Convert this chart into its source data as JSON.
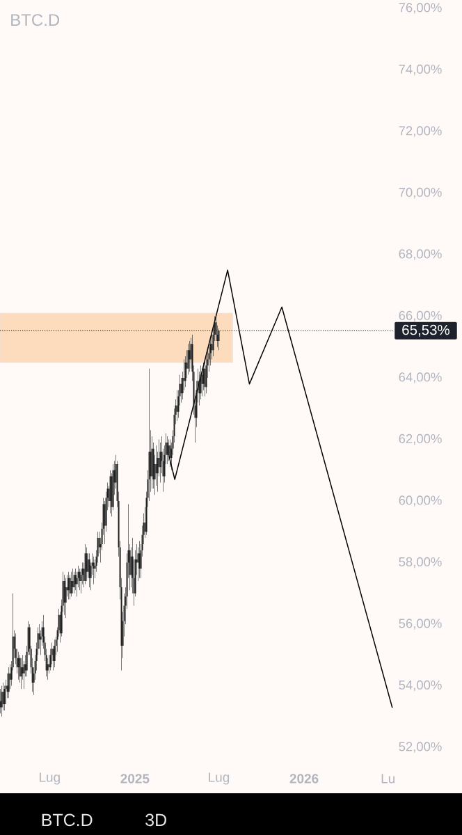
{
  "chart_data": {
    "type": "candlestick",
    "title": "BTC.D",
    "color": "#1e1e1e",
    "x": [
      "2024-03-17",
      "2024-03-20",
      "2024-03-23",
      "2024-03-26",
      "2024-03-29",
      "2024-04-01",
      "2024-04-04",
      "2024-04-07",
      "2024-04-10",
      "2024-04-13",
      "2024-04-16",
      "2024-04-19",
      "2024-04-22",
      "2024-04-25",
      "2024-04-28",
      "2024-05-01",
      "2024-05-04",
      "2024-05-07",
      "2024-05-10",
      "2024-05-13",
      "2024-05-16",
      "2024-05-19",
      "2024-05-22",
      "2024-05-25",
      "2024-05-28",
      "2024-05-31",
      "2024-06-03",
      "2024-06-06",
      "2024-06-09",
      "2024-06-12",
      "2024-06-15",
      "2024-06-18",
      "2024-06-21",
      "2024-06-24",
      "2024-06-27",
      "2024-06-30",
      "2024-07-03",
      "2024-07-06",
      "2024-07-09",
      "2024-07-12",
      "2024-07-15",
      "2024-07-18",
      "2024-07-21",
      "2024-07-24",
      "2024-07-27",
      "2024-07-30",
      "2024-08-02",
      "2024-08-05",
      "2024-08-08",
      "2024-08-11",
      "2024-08-14",
      "2024-08-17",
      "2024-08-20",
      "2024-08-23",
      "2024-08-26",
      "2024-08-29",
      "2024-09-01",
      "2024-09-04",
      "2024-09-07",
      "2024-09-10",
      "2024-09-13",
      "2024-09-16",
      "2024-09-19",
      "2024-09-22",
      "2024-09-25",
      "2024-09-28",
      "2024-10-01",
      "2024-10-04",
      "2024-10-07",
      "2024-10-10",
      "2024-10-13",
      "2024-10-16",
      "2024-10-19",
      "2024-10-22",
      "2024-10-25",
      "2024-10-28",
      "2024-10-31",
      "2024-11-03",
      "2024-11-06",
      "2024-11-09",
      "2024-11-12",
      "2024-11-15",
      "2024-11-18",
      "2024-11-21",
      "2024-11-24",
      "2024-11-27",
      "2024-11-30",
      "2024-12-03",
      "2024-12-06",
      "2024-12-09",
      "2024-12-12",
      "2024-12-15",
      "2024-12-18",
      "2024-12-21",
      "2024-12-24",
      "2024-12-27",
      "2024-12-30",
      "2025-01-02",
      "2025-01-05",
      "2025-01-08",
      "2025-01-11",
      "2025-01-14",
      "2025-01-17",
      "2025-01-20",
      "2025-01-23",
      "2025-01-26",
      "2025-01-29",
      "2025-02-01",
      "2025-02-04",
      "2025-02-07",
      "2025-02-10",
      "2025-02-13",
      "2025-02-16",
      "2025-02-19",
      "2025-02-22",
      "2025-02-25",
      "2025-02-28",
      "2025-03-03",
      "2025-03-06",
      "2025-03-09",
      "2025-03-12",
      "2025-03-15",
      "2025-03-18",
      "2025-03-21",
      "2025-03-24",
      "2025-03-27",
      "2025-03-30",
      "2025-04-02",
      "2025-04-05",
      "2025-04-08",
      "2025-04-11",
      "2025-04-14",
      "2025-04-17",
      "2025-04-20",
      "2025-04-23",
      "2025-04-26",
      "2025-04-29",
      "2025-05-02",
      "2025-05-05",
      "2025-05-08",
      "2025-05-11",
      "2025-05-14",
      "2025-05-17",
      "2025-05-20",
      "2025-05-23",
      "2025-05-26",
      "2025-05-29",
      "2025-06-01",
      "2025-06-04",
      "2025-06-07",
      "2025-06-10",
      "2025-06-13",
      "2025-06-16",
      "2025-06-19",
      "2025-06-22",
      "2025-06-25",
      "2025-06-28",
      "2025-07-01"
    ],
    "ohlc": [
      [
        53.5,
        53.9,
        53.1,
        53.3
      ],
      [
        53.3,
        54.0,
        53.0,
        53.8
      ],
      [
        53.8,
        54.1,
        53.2,
        53.4
      ],
      [
        53.4,
        54.0,
        53.2,
        53.9
      ],
      [
        53.9,
        54.2,
        53.4,
        54.0
      ],
      [
        54.0,
        54.4,
        53.6,
        53.8
      ],
      [
        53.8,
        54.6,
        53.6,
        54.4
      ],
      [
        54.4,
        54.7,
        53.9,
        54.2
      ],
      [
        54.2,
        54.8,
        54.0,
        54.6
      ],
      [
        54.6,
        57.0,
        54.5,
        55.6
      ],
      [
        55.6,
        55.8,
        54.9,
        55.2
      ],
      [
        55.2,
        55.7,
        54.7,
        54.9
      ],
      [
        54.9,
        55.2,
        54.4,
        54.6
      ],
      [
        54.6,
        55.1,
        54.2,
        54.9
      ],
      [
        54.9,
        55.0,
        54.1,
        54.3
      ],
      [
        54.3,
        54.9,
        53.9,
        54.6
      ],
      [
        54.6,
        55.0,
        54.2,
        54.4
      ],
      [
        54.4,
        54.8,
        53.9,
        54.7
      ],
      [
        54.7,
        55.0,
        54.3,
        54.5
      ],
      [
        54.5,
        55.3,
        54.3,
        55.1
      ],
      [
        55.1,
        56.1,
        55.0,
        55.9
      ],
      [
        55.9,
        56.0,
        55.0,
        55.2
      ],
      [
        55.2,
        55.3,
        54.4,
        54.6
      ],
      [
        54.6,
        54.9,
        53.8,
        54.1
      ],
      [
        54.1,
        54.6,
        53.7,
        54.4
      ],
      [
        54.4,
        55.0,
        54.2,
        54.8
      ],
      [
        54.8,
        55.4,
        54.5,
        55.2
      ],
      [
        55.2,
        55.9,
        55.0,
        55.7
      ],
      [
        55.7,
        56.0,
        55.2,
        55.5
      ],
      [
        55.5,
        55.8,
        55.0,
        55.6
      ],
      [
        55.6,
        56.1,
        55.3,
        55.9
      ],
      [
        55.9,
        56.3,
        55.2,
        55.4
      ],
      [
        55.4,
        55.6,
        54.8,
        55.0
      ],
      [
        55.0,
        55.2,
        54.3,
        54.5
      ],
      [
        54.5,
        54.9,
        54.2,
        54.7
      ],
      [
        54.7,
        55.0,
        54.4,
        54.6
      ],
      [
        54.6,
        55.2,
        54.5,
        55.0
      ],
      [
        55.0,
        55.4,
        54.7,
        55.2
      ],
      [
        55.2,
        55.3,
        54.5,
        54.8
      ],
      [
        54.8,
        55.5,
        54.6,
        55.3
      ],
      [
        55.3,
        55.6,
        55.0,
        55.5
      ],
      [
        55.5,
        55.9,
        55.1,
        55.8
      ],
      [
        55.8,
        56.5,
        55.6,
        56.3
      ],
      [
        56.3,
        56.4,
        55.4,
        55.7
      ],
      [
        55.7,
        56.8,
        55.6,
        56.6
      ],
      [
        56.6,
        57.7,
        56.4,
        57.4
      ],
      [
        57.4,
        57.6,
        56.3,
        56.7
      ],
      [
        56.7,
        57.5,
        56.2,
        57.2
      ],
      [
        57.2,
        57.6,
        56.9,
        57.1
      ],
      [
        57.1,
        57.7,
        56.8,
        57.5
      ],
      [
        57.5,
        57.6,
        56.8,
        57.0
      ],
      [
        57.0,
        57.7,
        56.9,
        57.4
      ],
      [
        57.4,
        57.8,
        57.0,
        57.2
      ],
      [
        57.2,
        57.7,
        57.0,
        57.6
      ],
      [
        57.6,
        57.8,
        57.1,
        57.3
      ],
      [
        57.3,
        57.7,
        56.9,
        57.5
      ],
      [
        57.5,
        57.9,
        57.2,
        57.7
      ],
      [
        57.7,
        57.8,
        57.1,
        57.4
      ],
      [
        57.4,
        57.8,
        57.0,
        57.6
      ],
      [
        57.6,
        58.0,
        57.3,
        57.8
      ],
      [
        57.8,
        58.0,
        57.2,
        57.4
      ],
      [
        57.4,
        58.6,
        57.3,
        58.3
      ],
      [
        58.3,
        58.5,
        57.4,
        57.7
      ],
      [
        57.7,
        58.3,
        57.5,
        58.1
      ],
      [
        58.1,
        58.3,
        57.2,
        57.5
      ],
      [
        57.5,
        58.0,
        57.1,
        57.9
      ],
      [
        57.9,
        58.3,
        57.6,
        58.0
      ],
      [
        58.0,
        58.2,
        57.3,
        57.8
      ],
      [
        57.8,
        58.1,
        57.5,
        57.9
      ],
      [
        57.9,
        58.4,
        57.7,
        58.2
      ],
      [
        58.2,
        59.0,
        58.0,
        58.8
      ],
      [
        58.8,
        59.0,
        58.3,
        58.5
      ],
      [
        58.5,
        58.8,
        58.0,
        58.6
      ],
      [
        58.6,
        59.3,
        58.4,
        59.1
      ],
      [
        59.1,
        60.1,
        58.9,
        59.9
      ],
      [
        59.9,
        60.0,
        58.6,
        59.2
      ],
      [
        59.2,
        60.3,
        59.0,
        60.1
      ],
      [
        60.1,
        60.6,
        59.7,
        60.4
      ],
      [
        60.4,
        60.5,
        59.8,
        60.0
      ],
      [
        60.0,
        61.0,
        59.6,
        60.8
      ],
      [
        60.8,
        60.9,
        59.5,
        59.8
      ],
      [
        59.8,
        61.2,
        59.7,
        61.0
      ],
      [
        61.0,
        61.3,
        60.2,
        60.6
      ],
      [
        60.6,
        61.5,
        60.4,
        61.2
      ],
      [
        61.2,
        61.3,
        59.8,
        60.0
      ],
      [
        60.0,
        60.3,
        58.2,
        58.5
      ],
      [
        58.5,
        58.7,
        56.8,
        57.2
      ],
      [
        57.2,
        57.5,
        54.5,
        55.3
      ],
      [
        55.3,
        56.4,
        54.9,
        56.1
      ],
      [
        56.1,
        57.0,
        55.6,
        56.6
      ],
      [
        56.6,
        57.2,
        56.0,
        56.9
      ],
      [
        56.9,
        58.3,
        56.5,
        58.0
      ],
      [
        58.0,
        59.9,
        57.5,
        58.4
      ],
      [
        58.4,
        58.6,
        57.1,
        57.6
      ],
      [
        57.6,
        58.5,
        57.2,
        58.2
      ],
      [
        58.2,
        58.8,
        57.0,
        57.5
      ],
      [
        57.5,
        58.1,
        56.6,
        57.0
      ],
      [
        57.0,
        58.4,
        56.9,
        58.1
      ],
      [
        58.1,
        58.6,
        57.6,
        58.0
      ],
      [
        58.0,
        58.5,
        57.4,
        58.3
      ],
      [
        58.3,
        58.7,
        57.5,
        57.8
      ],
      [
        57.8,
        58.6,
        57.5,
        58.4
      ],
      [
        58.4,
        59.2,
        58.2,
        58.9
      ],
      [
        58.9,
        59.6,
        58.6,
        59.3
      ],
      [
        59.3,
        59.8,
        58.8,
        59.0
      ],
      [
        59.0,
        60.3,
        58.9,
        60.1
      ],
      [
        60.1,
        61.0,
        59.8,
        60.7
      ],
      [
        60.7,
        64.3,
        60.0,
        61.6
      ],
      [
        61.6,
        62.3,
        60.3,
        60.8
      ],
      [
        60.8,
        62.1,
        60.4,
        61.7
      ],
      [
        61.7,
        61.9,
        60.4,
        60.7
      ],
      [
        60.7,
        61.5,
        60.2,
        61.2
      ],
      [
        61.2,
        61.8,
        60.5,
        60.9
      ],
      [
        60.9,
        61.6,
        60.3,
        61.4
      ],
      [
        61.4,
        62.0,
        60.8,
        61.1
      ],
      [
        61.1,
        61.9,
        60.6,
        61.6
      ],
      [
        61.6,
        62.1,
        60.9,
        61.3
      ],
      [
        61.3,
        61.7,
        60.3,
        60.8
      ],
      [
        60.8,
        61.8,
        60.6,
        61.5
      ],
      [
        61.5,
        62.2,
        61.2,
        61.9
      ],
      [
        61.9,
        62.1,
        61.2,
        61.5
      ],
      [
        61.5,
        62.0,
        61.3,
        61.8
      ],
      [
        61.8,
        62.0,
        61.1,
        61.4
      ],
      [
        61.4,
        61.9,
        61.0,
        61.7
      ],
      [
        61.7,
        62.3,
        61.5,
        62.1
      ],
      [
        62.1,
        63.0,
        61.9,
        62.8
      ],
      [
        62.8,
        63.3,
        62.5,
        63.1
      ],
      [
        63.1,
        63.6,
        62.6,
        62.9
      ],
      [
        62.9,
        63.6,
        62.7,
        63.4
      ],
      [
        63.4,
        64.1,
        63.1,
        63.8
      ],
      [
        63.8,
        64.0,
        63.2,
        63.5
      ],
      [
        63.5,
        64.2,
        63.3,
        64.0
      ],
      [
        64.0,
        64.6,
        63.6,
        63.9
      ],
      [
        63.9,
        64.7,
        63.7,
        64.5
      ],
      [
        64.5,
        64.9,
        64.0,
        64.3
      ],
      [
        64.3,
        65.1,
        64.1,
        64.9
      ],
      [
        64.9,
        65.2,
        64.2,
        64.6
      ],
      [
        64.6,
        65.3,
        64.3,
        65.1
      ],
      [
        65.1,
        65.4,
        63.9,
        64.2
      ],
      [
        64.2,
        64.4,
        62.8,
        63.1
      ],
      [
        63.1,
        63.4,
        61.9,
        62.7
      ],
      [
        62.7,
        63.9,
        62.4,
        63.6
      ],
      [
        63.6,
        64.3,
        63.2,
        63.9
      ],
      [
        63.9,
        64.2,
        63.1,
        63.5
      ],
      [
        63.5,
        64.4,
        63.3,
        64.1
      ],
      [
        64.1,
        64.3,
        63.4,
        63.8
      ],
      [
        63.8,
        64.5,
        63.6,
        64.3
      ],
      [
        64.3,
        64.6,
        63.4,
        63.7
      ],
      [
        63.7,
        64.7,
        63.5,
        64.4
      ],
      [
        64.4,
        64.9,
        64.0,
        64.6
      ],
      [
        64.6,
        65.0,
        64.2,
        64.8
      ],
      [
        64.8,
        65.3,
        64.4,
        65.1
      ],
      [
        65.1,
        65.4,
        64.6,
        64.9
      ],
      [
        64.9,
        65.6,
        64.7,
        65.4
      ],
      [
        65.4,
        66.0,
        65.2,
        65.8
      ],
      [
        65.8,
        66.0,
        65.2,
        65.4
      ],
      [
        65.4,
        65.7,
        65.0,
        65.2
      ],
      [
        65.2,
        65.6,
        64.9,
        65.53
      ]
    ],
    "series": [
      {
        "type": "line",
        "color": "#000000",
        "x": [
          "2025-03-15",
          "2025-03-28",
          "2025-07-20",
          "2025-09-05",
          "2025-11-14",
          "2026-07-10"
        ],
        "values": [
          61.5,
          60.7,
          67.5,
          63.8,
          66.3,
          53.3
        ]
      }
    ],
    "xlim": [
      "2024-03-16",
      "2026-07-12"
    ],
    "xticks": [
      {
        "value": "2024-07-01",
        "label": "Lug"
      },
      {
        "value": "2025-01-01",
        "label": "2025"
      },
      {
        "value": "2025-07-01",
        "label": "Lug"
      },
      {
        "value": "2026-01-01",
        "label": "2026"
      },
      {
        "value": "2026-07-01",
        "label": "Lu"
      }
    ],
    "ylim": [
      52,
      76
    ],
    "yticks": [
      {
        "value": 52,
        "label": "52,00%"
      },
      {
        "value": 54,
        "label": "54,00%"
      },
      {
        "value": 56,
        "label": "56,00%"
      },
      {
        "value": 58,
        "label": "58,00%"
      },
      {
        "value": 60,
        "label": "60,00%"
      },
      {
        "value": 62,
        "label": "62,00%"
      },
      {
        "value": 64,
        "label": "64,00%"
      },
      {
        "value": 66,
        "label": "66,00%"
      },
      {
        "value": 68,
        "label": "68,00%"
      },
      {
        "value": 70,
        "label": "70,00%"
      },
      {
        "value": 72,
        "label": "72,00%"
      },
      {
        "value": 74,
        "label": "74,00%"
      },
      {
        "value": 76,
        "label": "76,00%"
      }
    ],
    "ref_lines": [
      {
        "axis": "y",
        "value": 65.53,
        "label": "65,53%",
        "line_style": "dotted",
        "color": "#000000"
      }
    ],
    "bands": [
      {
        "axis": "y",
        "from": 64.5,
        "to": 66.1,
        "color": "#fcdcbc"
      }
    ],
    "annotations": [
      "BTC.D",
      "3D"
    ]
  }
}
